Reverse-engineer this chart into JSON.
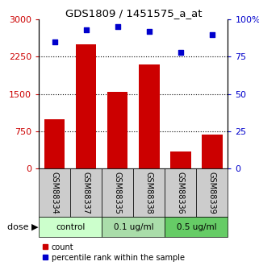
{
  "title": "GDS1809 / 1451575_a_at",
  "samples": [
    "GSM88334",
    "GSM88337",
    "GSM88335",
    "GSM88338",
    "GSM88336",
    "GSM88339"
  ],
  "counts": [
    1000,
    2500,
    1550,
    2100,
    350,
    680
  ],
  "percentiles": [
    85,
    93,
    95,
    92,
    78,
    90
  ],
  "bar_color": "#cc0000",
  "dot_color": "#0000cc",
  "left_ylim": [
    0,
    3000
  ],
  "right_ylim": [
    0,
    100
  ],
  "left_yticks": [
    0,
    750,
    1500,
    2250,
    3000
  ],
  "right_yticks": [
    0,
    25,
    50,
    75,
    100
  ],
  "left_yticklabels": [
    "0",
    "750",
    "1500",
    "2250",
    "3000"
  ],
  "right_yticklabels": [
    "0",
    "25",
    "50",
    "75",
    "100%"
  ],
  "left_tick_color": "#cc0000",
  "right_tick_color": "#0000cc",
  "groups": [
    {
      "label": "control",
      "start": 0,
      "end": 2,
      "color": "#ccffcc"
    },
    {
      "label": "0.1 ug/ml",
      "start": 2,
      "end": 4,
      "color": "#aaddaa"
    },
    {
      "label": "0.5 ug/ml",
      "start": 4,
      "end": 6,
      "color": "#66cc66"
    }
  ],
  "dose_label": "dose",
  "legend_count_label": "count",
  "legend_pct_label": "percentile rank within the sample",
  "grid_color": "#000000",
  "bg_color": "#ffffff",
  "sample_box_color": "#cccccc",
  "hgrid_yticks": [
    750,
    1500,
    2250
  ]
}
